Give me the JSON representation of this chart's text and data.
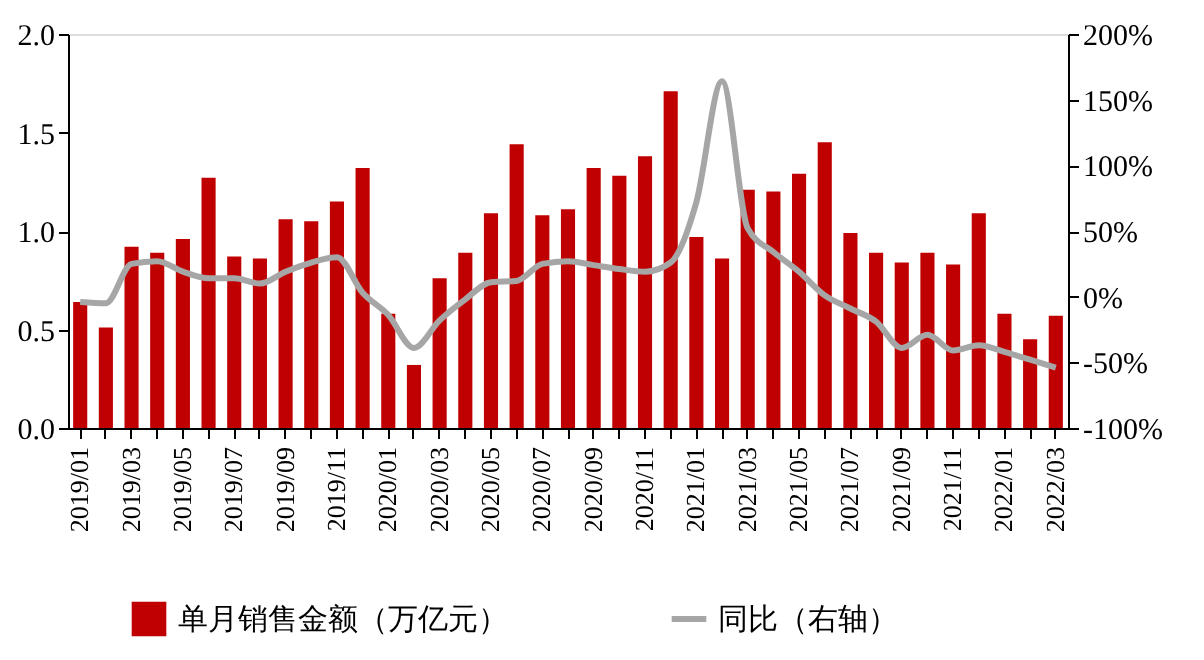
{
  "chart_data": {
    "type": "bar",
    "categories": [
      "2019/01",
      null,
      "2019/03",
      null,
      "2019/05",
      null,
      "2019/07",
      null,
      "2019/09",
      null,
      "2019/11",
      null,
      "2020/01",
      null,
      "2020/03",
      null,
      "2020/05",
      null,
      "2020/07",
      null,
      "2020/09",
      null,
      "2020/11",
      null,
      "2021/01",
      null,
      "2021/03",
      null,
      "2021/05",
      null,
      "2021/07",
      null,
      "2021/09",
      null,
      "2021/11",
      null,
      "2022/01",
      null,
      "2022/03"
    ],
    "series": [
      {
        "name": "单月销售金额（万亿元）",
        "color": "#c00000",
        "values": [
          0.64,
          0.51,
          0.92,
          0.89,
          0.96,
          1.27,
          0.87,
          0.86,
          1.06,
          1.05,
          1.15,
          1.32,
          0.58,
          0.32,
          0.76,
          0.89,
          1.09,
          1.44,
          1.08,
          1.11,
          1.32,
          1.28,
          1.38,
          1.71,
          0.97,
          0.86,
          1.21,
          1.2,
          1.29,
          1.45,
          0.99,
          0.89,
          0.84,
          0.89,
          0.83,
          1.09,
          0.58,
          0.45,
          0.57
        ]
      },
      {
        "name": "同比（右轴）",
        "color": "#a6a6a6",
        "type": "line",
        "axis": "y2",
        "values": [
          -4,
          -5,
          25,
          27,
          19,
          14,
          14,
          10,
          19,
          26,
          30,
          3,
          -14,
          -39,
          -18,
          -2,
          11,
          12,
          25,
          27,
          24,
          21,
          19,
          26,
          72,
          164,
          52,
          34,
          19,
          1,
          -9,
          -19,
          -39,
          -29,
          -41,
          -37,
          -42,
          -48,
          -54
        ]
      }
    ],
    "ylim": [
      0,
      2
    ],
    "yticks": [
      {
        "value": 0,
        "label": "0.0"
      },
      {
        "value": 0.5,
        "label": "0.5"
      },
      {
        "value": 1,
        "label": "1.0"
      },
      {
        "value": 1.5,
        "label": "1.5"
      },
      {
        "value": 2,
        "label": "2.0"
      }
    ],
    "y2lim": [
      -100,
      200
    ],
    "y2ticks": [
      {
        "value": -100,
        "label": "-100%"
      },
      {
        "value": -50,
        "label": "-50%"
      },
      {
        "value": 0,
        "label": "0%"
      },
      {
        "value": 50,
        "label": "50%"
      },
      {
        "value": 100,
        "label": "100%"
      },
      {
        "value": 150,
        "label": "150%"
      },
      {
        "value": 200,
        "label": "200%"
      }
    ],
    "grid": false,
    "legend": "bottom",
    "line_style": "solid",
    "marker": "none"
  }
}
